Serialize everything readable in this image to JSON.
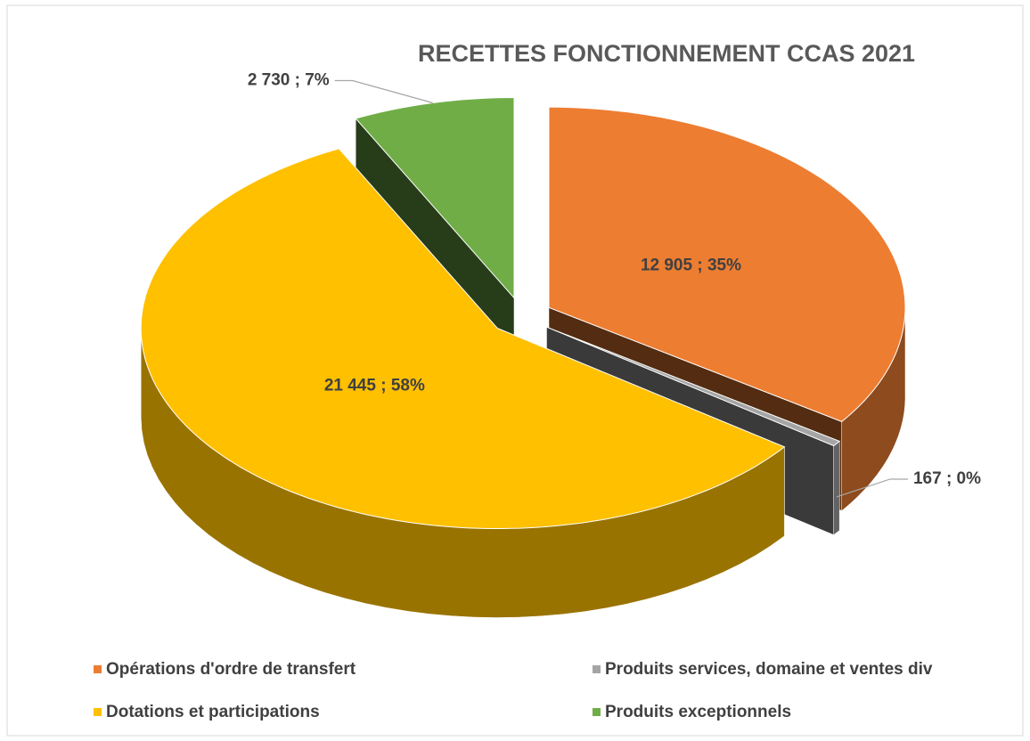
{
  "chart_data": {
    "type": "pie",
    "title": "RECETTES FONCTIONNEMENT CCAS 2021",
    "categories": [
      "Opérations d'ordre de transfert",
      "Produits services, domaine et ventes div",
      "Dotations et participations",
      "Produits exceptionnels"
    ],
    "values": [
      12905,
      167,
      21445,
      2730
    ],
    "value_labels": [
      "12 905  ; 35%",
      "167  ; 0%",
      "21 445  ; 58%",
      "2 730  ; 7%"
    ],
    "colors": [
      "#ed7d31",
      "#a5a5a5",
      "#ffc000",
      "#70ad47"
    ],
    "legend": "bottom"
  }
}
